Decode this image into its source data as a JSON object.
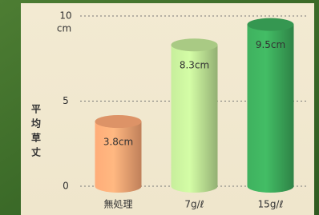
{
  "chart_data": {
    "type": "bar",
    "y_label": "平均草丈",
    "y_unit": "cm",
    "categories": [
      "無処理",
      "7g/ℓ",
      "15g/ℓ"
    ],
    "values": [
      3.8,
      8.3,
      9.5
    ],
    "value_labels": [
      "3.8cm",
      "8.3cm",
      "9.5cm"
    ],
    "colors": [
      "#f0a070",
      "#b8dc90",
      "#3aa458"
    ],
    "ylim": [
      0,
      10
    ],
    "yticks": [
      0,
      5,
      10
    ],
    "grid": true
  }
}
